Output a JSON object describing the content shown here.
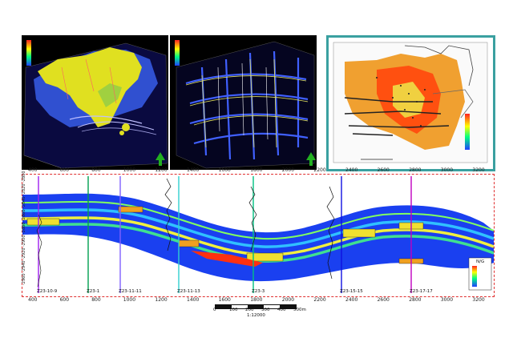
{
  "cross_section": {
    "x_ticks": [
      "400",
      "600",
      "800",
      "1000",
      "1200",
      "1400",
      "1600",
      "1800",
      "2000",
      "2200",
      "2400",
      "2600",
      "2800",
      "3000",
      "3200"
    ],
    "top_x_ticks": [
      "400",
      "600",
      "800",
      "1000",
      "1200",
      "1400",
      "1600",
      "1800",
      "2000",
      "2200",
      "2400",
      "2600",
      "2800",
      "3000",
      "3200"
    ],
    "depth_ticks": [
      "-2800",
      "-2820",
      "-2840",
      "-2860",
      "-2880",
      "-2900",
      "-2920",
      "-2940",
      "-2960"
    ],
    "wells": [
      {
        "label": "Z23-10-9",
        "color": "#a020f0"
      },
      {
        "label": "Z23-1",
        "color": "#00a050"
      },
      {
        "label": "Z23-11-11",
        "color": "#8060ff"
      },
      {
        "label": "Z23-11-13",
        "color": "#30d0d0"
      },
      {
        "label": "Z23-3",
        "color": "#00c080"
      },
      {
        "label": "Z23-15-15",
        "color": "#1010e0"
      },
      {
        "label": "Z23-17-17",
        "color": "#c000c0"
      }
    ],
    "scale_bar": {
      "ticks": [
        "0",
        "100",
        "200",
        "300",
        "400",
        "500m"
      ],
      "ratio": "1:12000"
    },
    "legend_title": "N/G"
  },
  "colors": {
    "frame": "#e03030",
    "map_border": "#3aa0a0",
    "arrow": "#22b020"
  }
}
